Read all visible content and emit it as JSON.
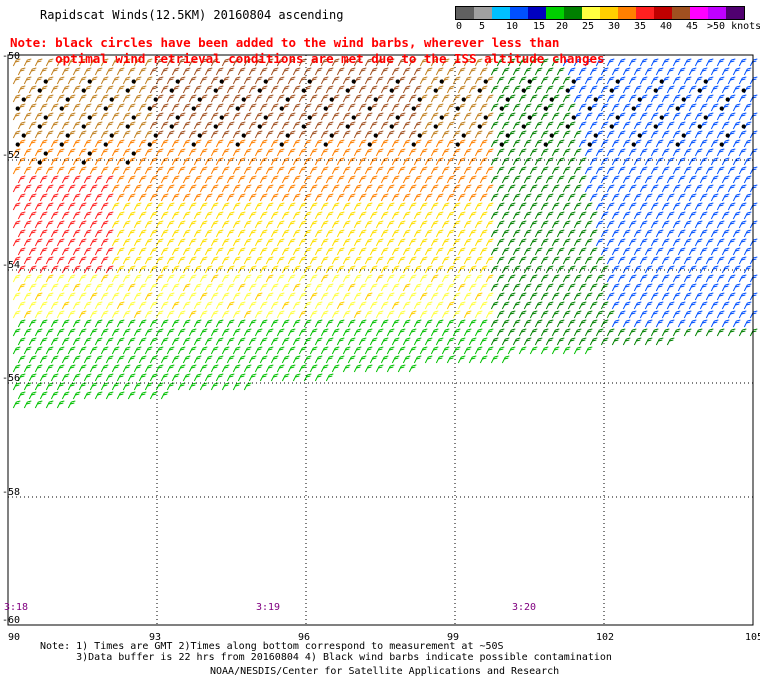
{
  "title": "Rapidscat Winds(12.5KM) 20160804 ascending",
  "note_lines": [
    "Note: black circles have been added to the wind barbs, wherever less than",
    "      optimal wind retrieval conditions are met due to the ISS altitude changes"
  ],
  "colorbar": {
    "colors": [
      "#606060",
      "#a0a0a0",
      "#00c0ff",
      "#0050ff",
      "#0000c0",
      "#00d000",
      "#008000",
      "#ffff40",
      "#ffd000",
      "#ff8000",
      "#ff2020",
      "#c00000",
      "#a05020",
      "#ff00ff",
      "#c000ff",
      "#500070"
    ],
    "labels": [
      "0",
      "5",
      "10",
      "15",
      "20",
      "25",
      "30",
      "35",
      "40",
      "45",
      ">50 knots"
    ]
  },
  "map": {
    "lon_ticks": [
      "90",
      "93",
      "96",
      "99",
      "102",
      "105"
    ],
    "lat_ticks": [
      "-50",
      "-52",
      "-54",
      "-56",
      "-58",
      "-60"
    ],
    "time_labels": [
      "3:18",
      "3:19",
      "3:20"
    ],
    "time_color": "#800080"
  },
  "footer": {
    "line1": "Note: 1) Times are GMT 2)Times along bottom correspond to measurement at ~50S",
    "line2": "      3)Data buffer is 22 hrs from 20160804 4) Black wind barbs indicate possible contamination",
    "credit": "NOAA/NESDIS/Center for Satellite Applications and Research"
  }
}
